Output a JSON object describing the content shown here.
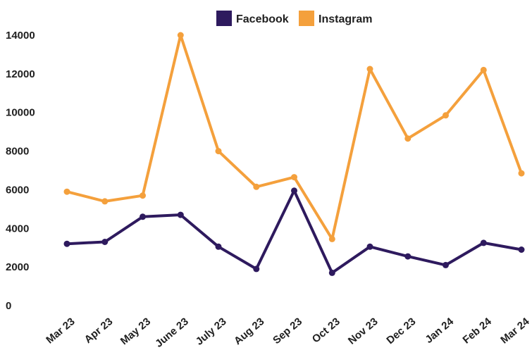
{
  "chart_data": {
    "type": "line",
    "title": "",
    "xlabel": "",
    "ylabel": "",
    "categories": [
      "Mar 23",
      "Apr 23",
      "May 23",
      "June 23",
      "July 23",
      "Aug 23",
      "Sep 23",
      "Oct 23",
      "Nov 23",
      "Dec 23",
      "Jan 24",
      "Feb 24",
      "Mar 24"
    ],
    "ylim": [
      0,
      14000
    ],
    "yticks": [
      0,
      2000,
      4000,
      6000,
      8000,
      10000,
      12000,
      14000
    ],
    "grid": false,
    "legend_position": "top-center",
    "series": [
      {
        "name": "Facebook",
        "color": "#2e1a5e",
        "values": [
          3200,
          3300,
          4600,
          4700,
          3050,
          1900,
          5950,
          1700,
          3050,
          2550,
          2100,
          3250,
          2900
        ]
      },
      {
        "name": "Instagram",
        "color": "#f4a03c",
        "values": [
          5900,
          5400,
          5700,
          14000,
          8000,
          6150,
          6650,
          3450,
          12250,
          8650,
          9850,
          12200,
          6850
        ]
      }
    ]
  }
}
